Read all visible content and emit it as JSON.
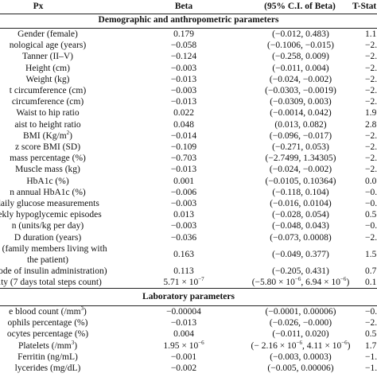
{
  "header": {
    "px": "Px",
    "beta": "Beta",
    "ci": "(95% C.I. of Beta)",
    "t": "T-Stat"
  },
  "sections": {
    "demographic": "Demographic and anthropometric parameters",
    "laboratory": "Laboratory parameters"
  },
  "demographic_rows": [
    {
      "px": "Gender (female)",
      "beta": "0.179",
      "ci": "(−0.012, 0.483)",
      "t": "1.1"
    },
    {
      "px": "nological age (years)",
      "beta": "−0.058",
      "ci": "(−0.1006, −0.015)",
      "t": "−2."
    },
    {
      "px": "Tanner (II–V)",
      "beta": "−0.124",
      "ci": "(−0.258, 0.009)",
      "t": "−2."
    },
    {
      "px": "Height (cm)",
      "beta": "−0.003",
      "ci": "(−0.011, 0.004)",
      "t": "−2."
    },
    {
      "px": "Weight (kg)",
      "beta": "−0.013",
      "ci": "(−0.024, −0.002)",
      "t": "−2."
    },
    {
      "px": "t circumference (cm)",
      "beta": "−0.003",
      "ci": "(−0.0303, −0.0019)",
      "t": "−2."
    },
    {
      "px": "circumference (cm)",
      "beta": "−0.013",
      "ci": "(−0.0309, 0.003)",
      "t": "−2."
    },
    {
      "px": "Waist to hip ratio",
      "beta": "0.022",
      "ci": "(−0.0014, 0.042)",
      "t": "1.9"
    },
    {
      "px": "aist to height ratio",
      "beta": "0.048",
      "ci": "(0.013, 0.082)",
      "t": "2.8"
    },
    {
      "px": "BMI (Kg/m",
      "px_sup": "2",
      "px_end": ")",
      "beta": "−0.014",
      "ci": "(−0.096, −0.017)",
      "t": "−2."
    },
    {
      "px": "z score BMI (SD)",
      "beta": "−0.109",
      "ci": "(−0.271, 0.053)",
      "t": "−2."
    },
    {
      "px": "mass percentage (%)",
      "beta": "−0.703",
      "ci": "(−2.7499, 1.34305)",
      "t": "−2."
    },
    {
      "px": "Muscle mass (kg)",
      "beta": "−0.013",
      "ci": "(−0.024, −0.002)",
      "t": "−2."
    },
    {
      "px": "HbA1c (%)",
      "beta": "0.001",
      "ci": "(−0.0105, 0.10364)",
      "t": "0.0"
    },
    {
      "px": "n annual HbA1c (%)",
      "beta": "−0.006",
      "ci": "(−0.118, 0.104)",
      "t": "−0."
    },
    {
      "px": "daily glucose measurements",
      "beta": "−0.003",
      "ci": "(−0.016, 0.0104)",
      "t": "−0."
    },
    {
      "px": "eekly hypoglycemic episodes",
      "beta": "0.013",
      "ci": "(−0.028, 0.054)",
      "t": "0.5"
    },
    {
      "px": "n (units/kg per day)",
      "beta": "−0.003",
      "ci": "(−0.048, 0.043)",
      "t": "−0."
    },
    {
      "px": "D duration (years)",
      "beta": "−0.036",
      "ci": "(−0.073, 0.0008)",
      "t": "−2."
    },
    {
      "px": "n * (family members living with",
      "px2": "the patient)",
      "beta": "0.163",
      "ci": "(−0.049, 0.377)",
      "t": "1.5"
    },
    {
      "px": "(mode of insulin administration)",
      "beta": "0.113",
      "ci": "(−0.205, 0.431)",
      "t": "0.7"
    },
    {
      "px": "vity (7 days total steps count)",
      "beta_base": "5.71 × 10",
      "beta_exp": "−7",
      "ci_a": "(−5.80 × 10",
      "ci_a_exp": "−6",
      "ci_b": ", 6.94 × 10",
      "ci_b_exp": "−6",
      "ci_c": ")",
      "t": "0.1"
    }
  ],
  "laboratory_rows": [
    {
      "px": "e blood count (/mm",
      "px_sup": "3",
      "px_end": ")",
      "beta": "−0.00004",
      "ci": "(−0.0001, 0.00006)",
      "t": "−0."
    },
    {
      "px": "ophils percentage (%)",
      "beta": "−0.013",
      "ci": "(−0.026, −0.000)",
      "t": "−2."
    },
    {
      "px": "ocytes percentage (%)",
      "beta": "0.004",
      "ci": "(−0.011, 0.020)",
      "t": "0.5"
    },
    {
      "px": "Platelets (/mm",
      "px_sup": "3",
      "px_end": ")",
      "beta_base": "1.95 × 10",
      "beta_exp": "−6",
      "ci_a": "(− 2.16 × 10",
      "ci_a_exp": "−6",
      "ci_b": ", 4.11 × 10",
      "ci_b_exp": "−6",
      "ci_c": ")",
      "t": "1.7"
    },
    {
      "px": "Ferritin (ng/mL)",
      "beta": "−0.001",
      "ci": "(−0.003, 0.0003)",
      "t": "−1."
    },
    {
      "px": "lycerides (mg/dL)",
      "beta": "−0.002",
      "ci": "(−0.005, 0.00006)",
      "t": "−1."
    }
  ]
}
